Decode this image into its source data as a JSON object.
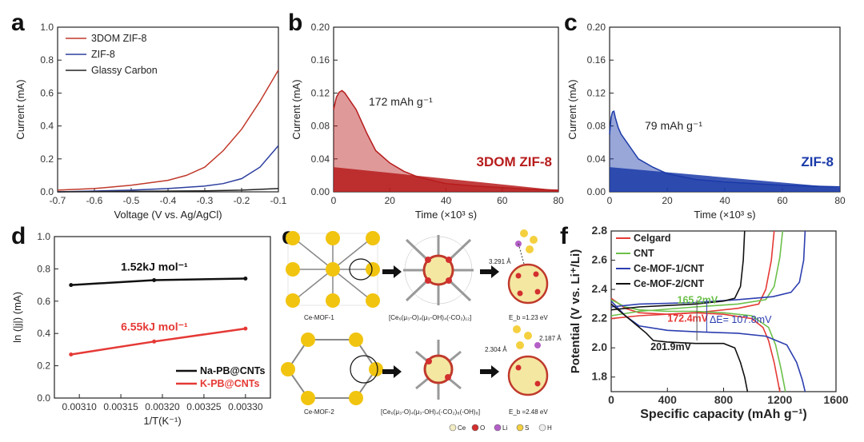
{
  "panels": {
    "a": {
      "letter": "a"
    },
    "b": {
      "letter": "b"
    },
    "c": {
      "letter": "c"
    },
    "d": {
      "letter": "d"
    },
    "e": {
      "letter": "e"
    },
    "f": {
      "letter": "f"
    }
  },
  "chart_data": [
    {
      "id": "a",
      "type": "line",
      "xlabel": "Voltage (V vs. Ag/AgCl)",
      "ylabel": "Current (mA)",
      "xlim": [
        -0.7,
        -0.1
      ],
      "ylim": [
        0,
        1.0
      ],
      "xticks": [
        "-0.7",
        "-0.6",
        "-0.5",
        "-0.4",
        "-0.3",
        "-0.2",
        "-0.1"
      ],
      "yticks": [
        "0.0",
        "0.2",
        "0.4",
        "0.6",
        "0.8",
        "1.0"
      ],
      "legend_position": "top-left",
      "series": [
        {
          "name": "3DOM ZIF-8",
          "color": "#c0392b",
          "x": [
            -0.7,
            -0.6,
            -0.5,
            -0.4,
            -0.35,
            -0.3,
            -0.25,
            -0.2,
            -0.15,
            -0.1
          ],
          "y": [
            0.01,
            0.02,
            0.04,
            0.07,
            0.1,
            0.15,
            0.25,
            0.38,
            0.55,
            0.74
          ]
        },
        {
          "name": "ZIF-8",
          "color": "#2c3e9f",
          "x": [
            -0.7,
            -0.6,
            -0.5,
            -0.4,
            -0.3,
            -0.25,
            -0.2,
            -0.15,
            -0.1
          ],
          "y": [
            0.0,
            0.005,
            0.01,
            0.02,
            0.035,
            0.05,
            0.08,
            0.15,
            0.28
          ]
        },
        {
          "name": "Glassy Carbon",
          "color": "#222222",
          "x": [
            -0.7,
            -0.5,
            -0.3,
            -0.2,
            -0.1
          ],
          "y": [
            0.0,
            0.003,
            0.006,
            0.01,
            0.02
          ]
        }
      ]
    },
    {
      "id": "b",
      "type": "area",
      "xlabel": "Time (×10³ s)",
      "ylabel": "Current (mA)",
      "xlim": [
        0,
        80
      ],
      "ylim": [
        0,
        0.2
      ],
      "xticks": [
        "0",
        "20",
        "40",
        "60",
        "80"
      ],
      "yticks": [
        "0.00",
        "0.04",
        "0.08",
        "0.12",
        "0.16",
        "0.20"
      ],
      "annotation": "172 mAh g⁻¹",
      "label": "3DOM ZIF-8",
      "color": "#b71c1c",
      "x": [
        0,
        1,
        2,
        3,
        4,
        5,
        6,
        8,
        10,
        12,
        15,
        20,
        25,
        30,
        40,
        50,
        60,
        70,
        80
      ],
      "y": [
        0.1,
        0.115,
        0.121,
        0.123,
        0.12,
        0.115,
        0.11,
        0.1,
        0.085,
        0.07,
        0.05,
        0.035,
        0.025,
        0.018,
        0.01,
        0.007,
        0.005,
        0.003,
        0.002
      ],
      "baseline_x": [
        0,
        80
      ],
      "baseline_y": [
        0.03,
        0.002
      ]
    },
    {
      "id": "c",
      "type": "area",
      "xlabel": "Time (×10³ s)",
      "ylabel": "Current (mA)",
      "xlim": [
        0,
        80
      ],
      "ylim": [
        0,
        0.2
      ],
      "xticks": [
        "0",
        "20",
        "40",
        "60",
        "80"
      ],
      "yticks": [
        "0.00",
        "0.04",
        "0.08",
        "0.12",
        "0.16",
        "0.20"
      ],
      "annotation": "79 mAh g⁻¹",
      "label": "ZIF-8",
      "color": "#1a3aa8",
      "x": [
        0,
        0.5,
        1,
        1.5,
        2,
        3,
        4,
        6,
        8,
        10,
        15,
        20,
        30,
        40,
        50,
        60,
        70,
        80
      ],
      "y": [
        0.07,
        0.09,
        0.097,
        0.098,
        0.09,
        0.078,
        0.07,
        0.06,
        0.05,
        0.04,
        0.03,
        0.022,
        0.015,
        0.012,
        0.01,
        0.008,
        0.007,
        0.006
      ],
      "baseline_x": [
        0,
        80
      ],
      "baseline_y": [
        0.03,
        0.005
      ]
    },
    {
      "id": "d",
      "type": "scatter",
      "xlabel": "1/T(K⁻¹)",
      "ylabel": "ln (|j|) (mA)",
      "xlim": [
        0.00307,
        0.00333
      ],
      "ylim": [
        0,
        1.0
      ],
      "xticks": [
        "0.00310",
        "0.00315",
        "0.00320",
        "0.00325",
        "0.00330"
      ],
      "yticks": [
        "0.0",
        "0.2",
        "0.4",
        "0.6",
        "0.8",
        "1.0"
      ],
      "legend_position": "bottom-right",
      "series": [
        {
          "name": "Na-PB@CNTs",
          "color": "#111111",
          "x": [
            0.00309,
            0.00319,
            0.0033
          ],
          "y": [
            0.7,
            0.73,
            0.74
          ],
          "annotation": "1.52kJ mol⁻¹"
        },
        {
          "name": "K-PB@CNTs",
          "color": "#e53935",
          "x": [
            0.00309,
            0.00319,
            0.0033
          ],
          "y": [
            0.27,
            0.35,
            0.43
          ],
          "annotation": "6.55kJ mol⁻¹"
        }
      ]
    },
    {
      "id": "f",
      "type": "line",
      "xlabel": "Specific capacity (mAh g⁻¹)",
      "ylabel": "Potential (V vs. Li⁺/Li)",
      "xlim": [
        0,
        1600
      ],
      "ylim": [
        1.7,
        2.8
      ],
      "xticks": [
        "0",
        "400",
        "800",
        "1200",
        "1600"
      ],
      "yticks": [
        "1.8",
        "2.0",
        "2.2",
        "2.4",
        "2.6",
        "2.8"
      ],
      "legend_position": "top-left",
      "annotations": [
        "165.2mV",
        "172.4mV",
        "ΔE= 107.8mV",
        "201.9mV"
      ],
      "series": [
        {
          "name": "Celgard",
          "color": "#e53935",
          "discharge_x": [
            0,
            100,
            200,
            400,
            600,
            800,
            1000,
            1080,
            1120,
            1160,
            1200
          ],
          "discharge_y": [
            2.34,
            2.27,
            2.24,
            2.23,
            2.24,
            2.23,
            2.2,
            2.14,
            2.05,
            1.9,
            1.7
          ],
          "charge_x": [
            0,
            200,
            600,
            900,
            1050,
            1100,
            1140,
            1160
          ],
          "charge_y": [
            2.2,
            2.22,
            2.24,
            2.27,
            2.3,
            2.4,
            2.6,
            2.8
          ]
        },
        {
          "name": "CNT",
          "color": "#6cc04a",
          "discharge_x": [
            0,
            100,
            200,
            400,
            600,
            800,
            1000,
            1120,
            1170,
            1210,
            1240
          ],
          "discharge_y": [
            2.33,
            2.28,
            2.26,
            2.25,
            2.25,
            2.24,
            2.22,
            2.14,
            2.02,
            1.85,
            1.7
          ],
          "charge_x": [
            0,
            200,
            600,
            900,
            1100,
            1160,
            1200,
            1220
          ],
          "charge_y": [
            2.22,
            2.25,
            2.28,
            2.3,
            2.33,
            2.42,
            2.62,
            2.8
          ]
        },
        {
          "name": "Ce-MOF-1/CNT",
          "color": "#2c3eaf",
          "discharge_x": [
            0,
            100,
            200,
            400,
            600,
            900,
            1100,
            1250,
            1320,
            1360,
            1380
          ],
          "discharge_y": [
            2.32,
            2.22,
            2.15,
            2.12,
            2.11,
            2.1,
            2.08,
            2.02,
            1.9,
            1.78,
            1.7
          ],
          "charge_x": [
            0,
            200,
            600,
            900,
            1150,
            1280,
            1340,
            1370,
            1380
          ],
          "charge_y": [
            2.28,
            2.3,
            2.31,
            2.33,
            2.35,
            2.38,
            2.45,
            2.6,
            2.8
          ]
        },
        {
          "name": "Ce-MOF-2/CNT",
          "color": "#111111",
          "discharge_x": [
            0,
            100,
            250,
            300,
            400,
            600,
            800,
            880,
            920,
            950,
            970
          ],
          "discharge_y": [
            2.3,
            2.22,
            2.1,
            2.05,
            2.04,
            2.03,
            2.03,
            2.0,
            1.9,
            1.8,
            1.7
          ],
          "charge_x": [
            0,
            200,
            400,
            600,
            800,
            880,
            920,
            940,
            950
          ],
          "charge_y": [
            2.26,
            2.28,
            2.29,
            2.3,
            2.32,
            2.34,
            2.42,
            2.6,
            2.8
          ]
        }
      ]
    }
  ],
  "panel_e": {
    "top_left_label": "Ce-MOF-1",
    "top_mid_label": "[Ce₆(μ₃-O)₄(μ₃-OH)₄(-CO₂)₁₂]",
    "top_right_label": "E_b =1.23 eV",
    "top_right_dist": "3.291 Å",
    "bot_left_label": "Ce-MOF-2",
    "bot_mid_label": "[Ce₆(μ₃-O)₄(μ₃-OH)₄(-CO₂)₈(-OH)₈]",
    "bot_right_label": "E_b =2.48 eV",
    "bot_right_dist1": "2.304 Å",
    "bot_right_dist2": "2.187 Å",
    "legend": [
      {
        "name": "Ce",
        "color": "#f2ecc4"
      },
      {
        "name": "O",
        "color": "#d32f2f"
      },
      {
        "name": "Li",
        "color": "#b45fc8"
      },
      {
        "name": "S",
        "color": "#f4d03f"
      },
      {
        "name": "H",
        "color": "#eeeeee"
      }
    ]
  }
}
